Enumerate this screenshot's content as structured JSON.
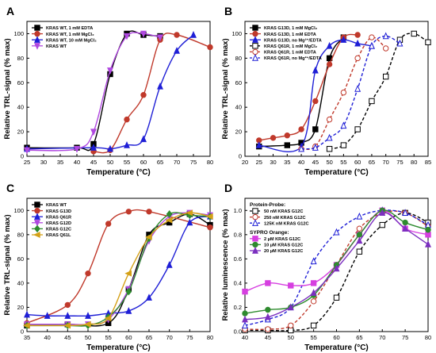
{
  "chart_data": [
    {
      "panel": "A",
      "type": "line",
      "xlabel": "Temperature (°C)",
      "ylabel": "Relative TRL-signal (% max)",
      "xlim": [
        25,
        80
      ],
      "ylim": [
        0,
        110
      ],
      "xticks": [
        25,
        30,
        35,
        40,
        45,
        50,
        55,
        60,
        65,
        70,
        75,
        80
      ],
      "yticks": [
        0,
        20,
        40,
        60,
        80,
        100
      ],
      "legend_position": "top-left",
      "series": [
        {
          "name": "KRAS WT, 1 mM EDTA",
          "color": "#000000",
          "marker": "square",
          "x": [
            25,
            40,
            45,
            50,
            55,
            60,
            65
          ],
          "y": [
            7,
            7,
            10,
            67,
            100,
            99,
            98
          ]
        },
        {
          "name": "KRAS WT, 1 mM MgCl₂",
          "color": "#c0392b",
          "marker": "circle",
          "x": [
            45,
            50,
            55,
            60,
            65,
            70,
            80
          ],
          "y": [
            4,
            5,
            30,
            50,
            95,
            99,
            89
          ]
        },
        {
          "name": "KRAS WT, 10 mM MgCl₂",
          "color": "#1f1fd6",
          "marker": "triangle",
          "x": [
            25,
            45,
            50,
            55,
            60,
            65,
            70,
            75
          ],
          "y": [
            6,
            7,
            6,
            9,
            14,
            57,
            86,
            99
          ]
        },
        {
          "name": "KRAS WT",
          "color": "#b048e0",
          "marker": "triangle-down",
          "x": [
            25,
            40,
            45,
            50,
            55,
            60,
            65
          ],
          "y": [
            5,
            6,
            20,
            70,
            98,
            100,
            97
          ]
        }
      ]
    },
    {
      "panel": "B",
      "type": "line",
      "xlabel": "Temperature (°C)",
      "ylabel": "Relative TRL-signal (% max)",
      "xlim": [
        20,
        85
      ],
      "ylim": [
        0,
        110
      ],
      "xticks": [
        20,
        25,
        30,
        35,
        40,
        45,
        50,
        55,
        60,
        65,
        70,
        75,
        80,
        85
      ],
      "yticks": [
        0,
        20,
        40,
        60,
        80,
        100
      ],
      "legend_position": "top-left",
      "series": [
        {
          "name": "KRAS G13D, 1 mM MgCl₂",
          "color": "#000000",
          "marker": "square",
          "x": [
            25,
            35,
            40,
            45,
            50,
            55
          ],
          "y": [
            8,
            9,
            11,
            22,
            80,
            97
          ]
        },
        {
          "name": "KRAS G13D, 1 mM EDTA",
          "color": "#c0392b",
          "marker": "circle",
          "x": [
            25,
            30,
            35,
            40,
            45,
            50,
            55,
            60
          ],
          "y": [
            13,
            15,
            17,
            22,
            45,
            75,
            97,
            99
          ]
        },
        {
          "name": "KRAS G13D, no Mg²⁺/EDTA",
          "color": "#1f1fd6",
          "marker": "triangle",
          "x": [
            25,
            40,
            45,
            50,
            55,
            60,
            65
          ],
          "y": [
            9,
            8,
            70,
            90,
            95,
            92,
            90
          ]
        },
        {
          "name": "KRAS Q61R, 1 mM MgCl₂",
          "color": "#000000",
          "marker": "square",
          "dashed": true,
          "x": [
            50,
            55,
            60,
            65,
            70,
            75,
            80,
            85
          ],
          "y": [
            6,
            9,
            22,
            45,
            65,
            95,
            100,
            93
          ]
        },
        {
          "name": "KRAS Q61R, 1 mM EDTA",
          "color": "#c0392b",
          "marker": "circle",
          "dashed": true,
          "x": [
            40,
            45,
            50,
            55,
            60,
            65,
            70
          ],
          "y": [
            6,
            8,
            30,
            52,
            80,
            97,
            88
          ]
        },
        {
          "name": "KRAS Q61R, no Mg²⁺/EDTA",
          "color": "#1f1fd6",
          "marker": "triangle",
          "dashed": true,
          "x": [
            40,
            45,
            50,
            55,
            60,
            65,
            70,
            75
          ],
          "y": [
            6,
            7,
            15,
            25,
            55,
            90,
            98,
            92
          ]
        }
      ]
    },
    {
      "panel": "C",
      "type": "line",
      "xlabel": "Temperature (°C)",
      "ylabel": "Relative TRL-signal (% max)",
      "xlim": [
        35,
        80
      ],
      "ylim": [
        0,
        110
      ],
      "xticks": [
        35,
        40,
        45,
        50,
        55,
        60,
        65,
        70,
        75,
        80
      ],
      "yticks": [
        0,
        20,
        40,
        60,
        80,
        100
      ],
      "legend_position": "top-left",
      "series": [
        {
          "name": "KRAS WT",
          "color": "#000000",
          "marker": "square",
          "x": [
            35,
            45,
            55,
            60,
            65,
            70,
            75,
            80
          ],
          "y": [
            5,
            6,
            7,
            35,
            80,
            90,
            97,
            88
          ]
        },
        {
          "name": "KRAS G13D",
          "color": "#c0392b",
          "marker": "circle",
          "x": [
            35,
            45,
            50,
            55,
            60,
            65,
            80
          ],
          "y": [
            7,
            22,
            48,
            89,
            99,
            99,
            86
          ]
        },
        {
          "name": "KRAS Q61R",
          "color": "#1f1fd6",
          "marker": "triangle",
          "x": [
            35,
            40,
            45,
            50,
            55,
            60,
            65,
            70,
            75,
            80
          ],
          "y": [
            14,
            13,
            13,
            13,
            15,
            17,
            28,
            55,
            90,
            95
          ]
        },
        {
          "name": "KRAS G12D",
          "color": "#b048e0",
          "marker": "triangle-down",
          "x": [
            35,
            45,
            50,
            55,
            60,
            65,
            70,
            75,
            80
          ],
          "y": [
            6,
            6,
            6,
            10,
            35,
            75,
            95,
            98,
            96
          ]
        },
        {
          "name": "KRAS G12C",
          "color": "#2e8b2e",
          "marker": "diamond",
          "x": [
            35,
            45,
            50,
            55,
            60,
            65,
            70,
            75,
            80
          ],
          "y": [
            5,
            5,
            5,
            12,
            33,
            77,
            97,
            96,
            95
          ]
        },
        {
          "name": "KRAS Q61L",
          "color": "#d4a017",
          "marker": "triangle-left",
          "x": [
            35,
            45,
            50,
            55,
            60,
            65,
            70,
            75,
            80
          ],
          "y": [
            5,
            5,
            6,
            11,
            48,
            78,
            92,
            98,
            95
          ]
        }
      ]
    },
    {
      "panel": "D",
      "type": "line",
      "xlabel": "Temperature (°C)",
      "ylabel": "Relative luminescence (% max)",
      "xlim": [
        40,
        80
      ],
      "ylim": [
        0,
        1.1
      ],
      "xticks": [
        40,
        45,
        50,
        55,
        60,
        65,
        70,
        75,
        80
      ],
      "yticks": [
        0.0,
        0.2,
        0.4,
        0.6,
        0.8,
        1.0
      ],
      "legend_position": "top-left",
      "legend_groups": [
        "Protein-Probe:",
        "SYPRO Orange:"
      ],
      "series": [
        {
          "name": "50 nM KRAS G12C",
          "group": 0,
          "color": "#000000",
          "marker": "square",
          "dashed": true,
          "x": [
            40,
            45,
            50,
            55,
            60,
            65,
            70,
            75,
            80
          ],
          "y": [
            0.01,
            0.01,
            0.01,
            0.05,
            0.28,
            0.66,
            0.88,
            0.98,
            0.9
          ]
        },
        {
          "name": "250 nM KRAS G12C",
          "group": 0,
          "color": "#c0392b",
          "marker": "circle",
          "dashed": true,
          "x": [
            40,
            45,
            50,
            55,
            60,
            65,
            70,
            75,
            80
          ],
          "y": [
            0.02,
            0.02,
            0.05,
            0.25,
            0.55,
            0.85,
            0.98,
            0.98,
            0.87
          ]
        },
        {
          "name": "125K nM KRAS G12C",
          "group": 0,
          "color": "#1f1fd6",
          "marker": "triangle",
          "dashed": true,
          "x": [
            40,
            45,
            50,
            55,
            60,
            65,
            70,
            75,
            80
          ],
          "y": [
            0.05,
            0.1,
            0.2,
            0.58,
            0.82,
            0.95,
            1.0,
            0.98,
            0.88
          ]
        },
        {
          "name": "2 µM KRAS G12C",
          "group": 1,
          "color": "#d63fe0",
          "marker": "square",
          "x": [
            40,
            45,
            50,
            55,
            60,
            65,
            70,
            75,
            80
          ],
          "y": [
            0.33,
            0.4,
            0.38,
            0.4,
            0.55,
            0.8,
            1.0,
            0.85,
            0.8
          ]
        },
        {
          "name": "10 µM KRAS G12C",
          "group": 1,
          "color": "#2e8b2e",
          "marker": "circle",
          "x": [
            40,
            45,
            50,
            55,
            60,
            65,
            70,
            75,
            80
          ],
          "y": [
            0.15,
            0.18,
            0.2,
            0.3,
            0.55,
            0.8,
            1.0,
            0.9,
            0.84
          ]
        },
        {
          "name": "20 µM KRAS G12C",
          "group": 1,
          "color": "#7b2fbf",
          "marker": "triangle",
          "x": [
            40,
            45,
            50,
            55,
            60,
            65,
            70,
            75,
            80
          ],
          "y": [
            0.1,
            0.12,
            0.2,
            0.32,
            0.52,
            0.75,
            0.98,
            0.85,
            0.72
          ]
        }
      ]
    }
  ]
}
